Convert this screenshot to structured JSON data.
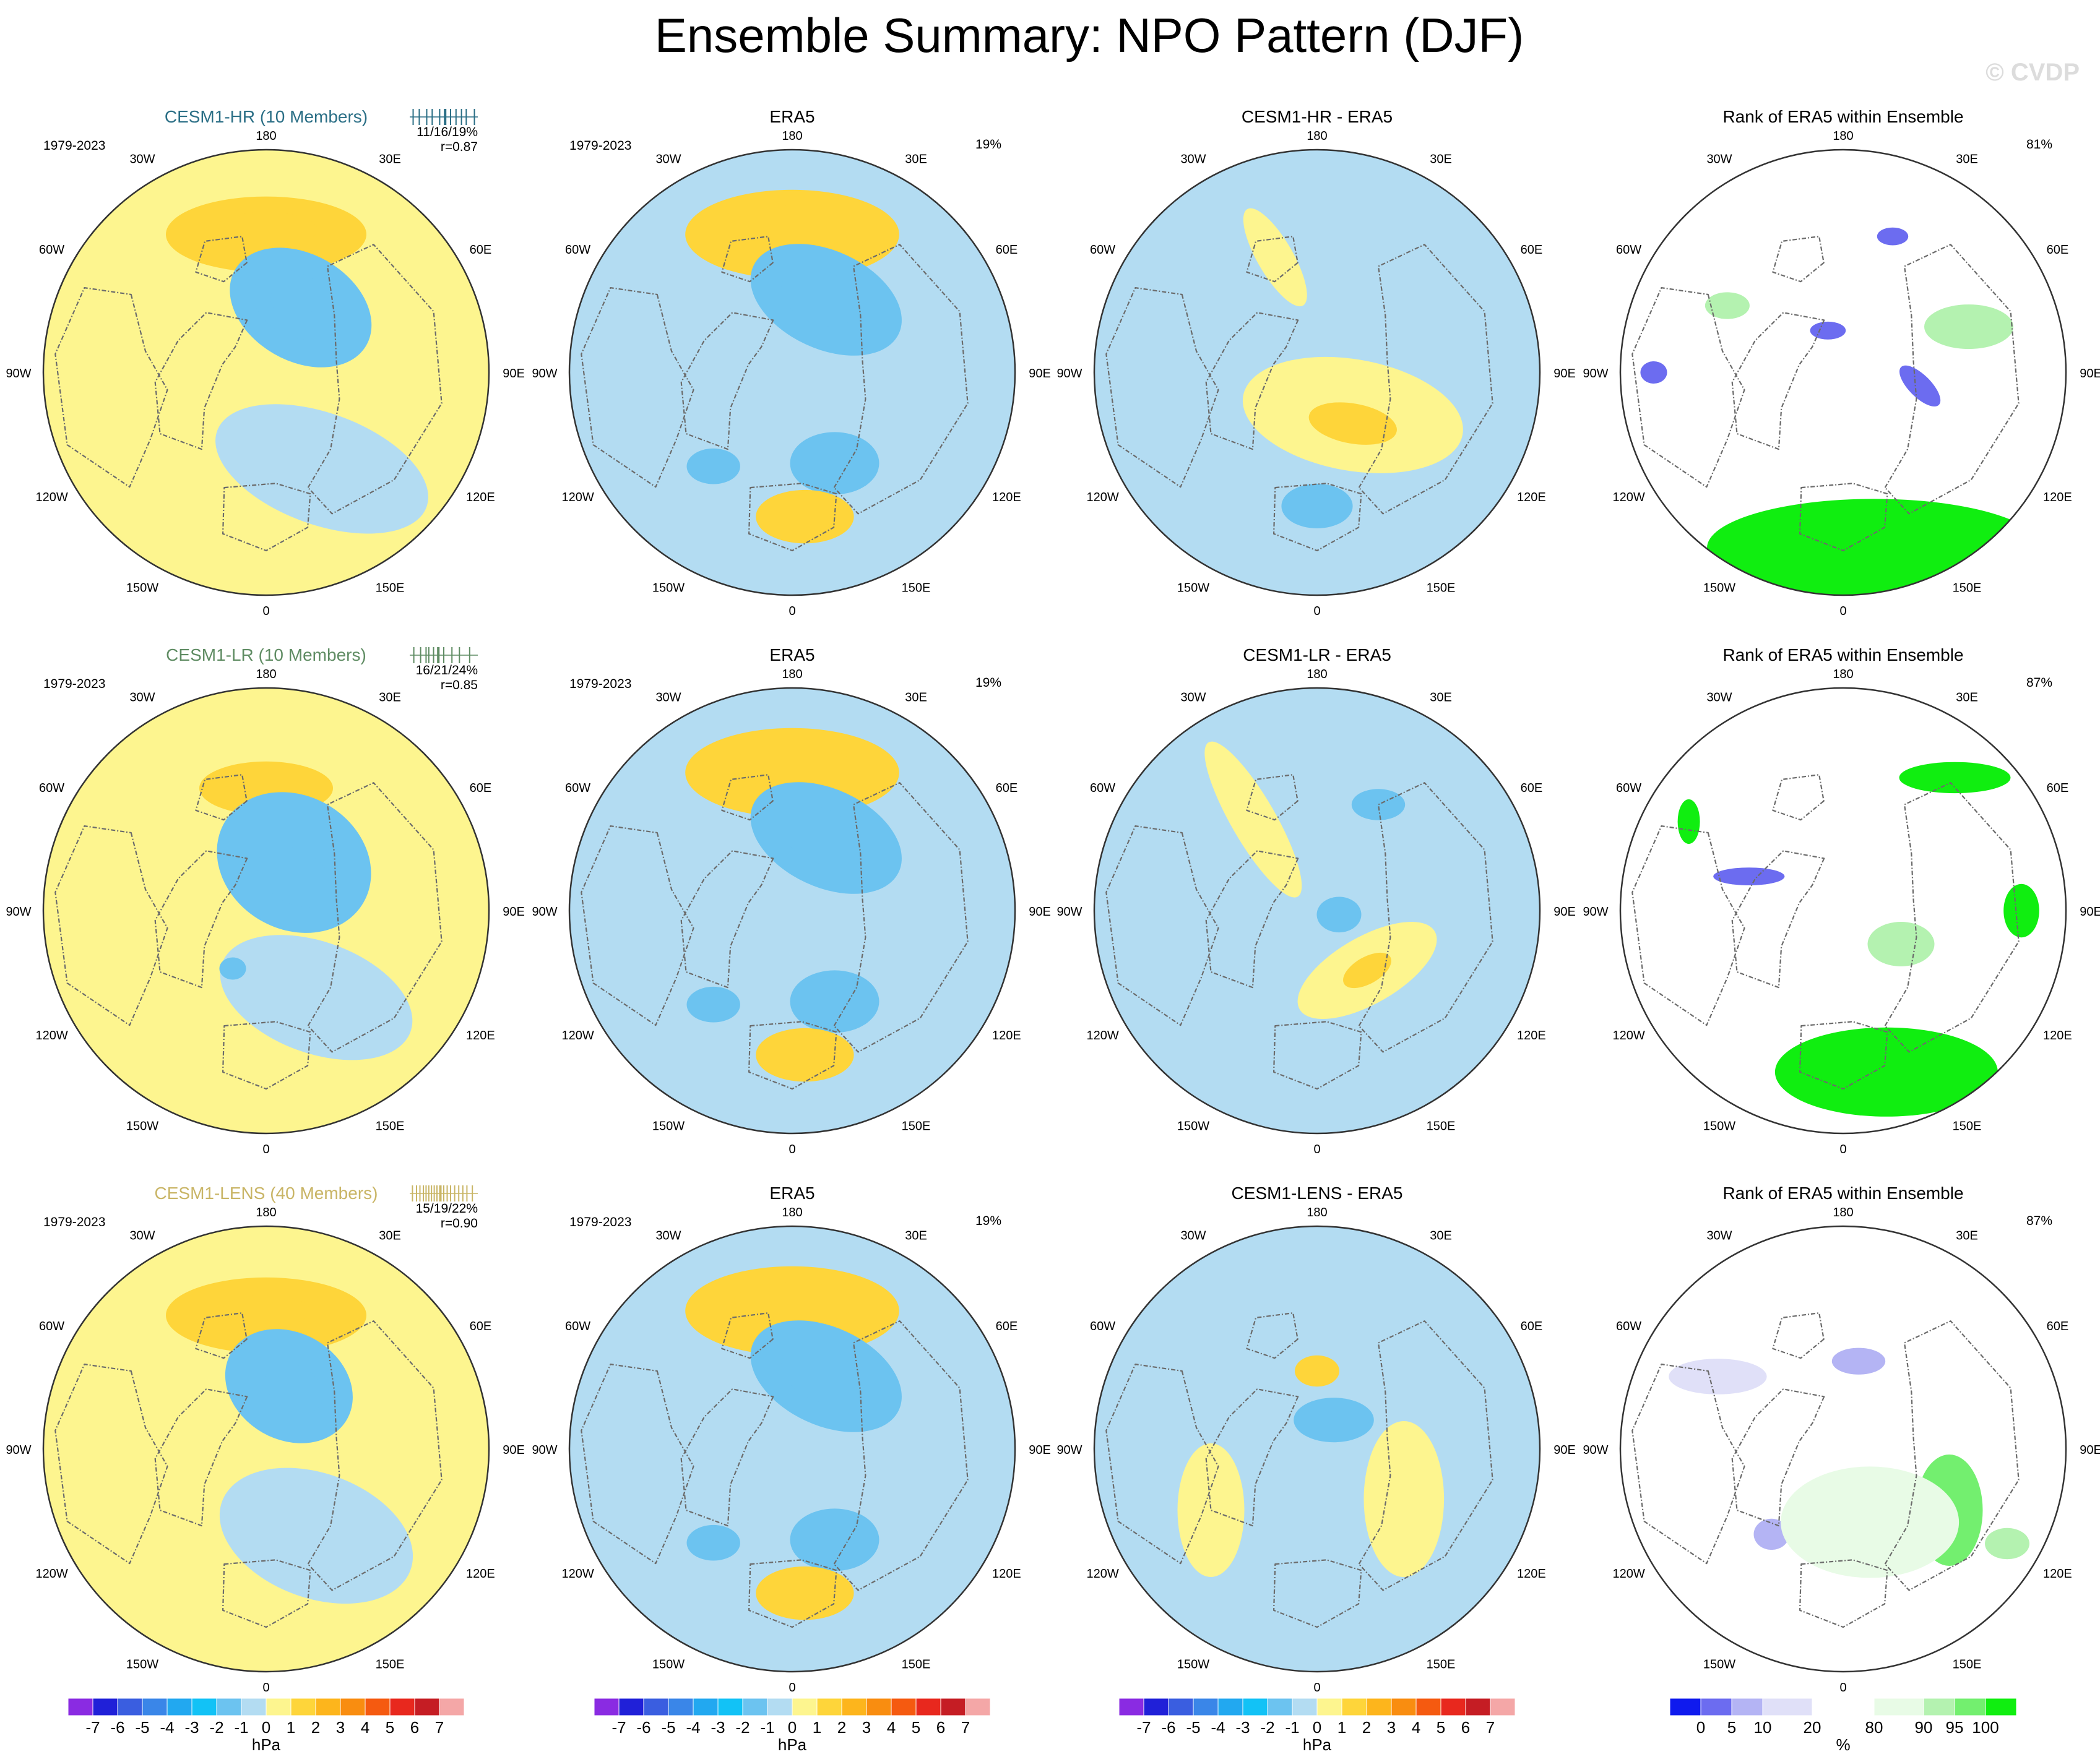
{
  "page": {
    "title": "Ensemble Summary: NPO Pattern (DJF)",
    "watermark": "© CVDP"
  },
  "colors": {
    "hr_title": "#2b6f86",
    "lr_title": "#5f8c63",
    "lens_title": "#c9b566",
    "land_outline": "#6b6b6b"
  },
  "chart_data": {
    "type": "heatmap",
    "projection": "north-polar-stereographic",
    "lon_labels": [
      "180",
      "150E",
      "120E",
      "90E",
      "60E",
      "30E",
      "0",
      "30W",
      "60W",
      "90W",
      "120W",
      "150W"
    ],
    "scales": {
      "hpa": {
        "colors": [
          "#8a2be2",
          "#2020d8",
          "#3a5ee0",
          "#3a86e8",
          "#22a8f0",
          "#12c2f6",
          "#6cc3f0",
          "#b3dcf2",
          "#fdf58f",
          "#fed53a",
          "#fdb51c",
          "#f98d10",
          "#f55a10",
          "#e8281e",
          "#c51d24",
          "#f4a7a7"
        ],
        "labels": [
          "-7",
          "-6",
          "-5",
          "-4",
          "-3",
          "-2",
          "-1",
          "0",
          "1",
          "2",
          "3",
          "4",
          "5",
          "6",
          "7"
        ],
        "unit": "hPa"
      },
      "rank": {
        "colors": [
          "#0f1aee",
          "#6c6cf0",
          "#b4b4f4",
          "#e0e0f8",
          "#ffffff",
          "#e8fbe6",
          "#b4f2b0",
          "#73ef6f",
          "#10ee10"
        ],
        "labels": [
          "0",
          "5",
          "10",
          "20",
          "80",
          "90",
          "95",
          "100"
        ],
        "unit": "%"
      }
    },
    "rows": [
      {
        "model": "CESM1-HR (10 Members)",
        "color_key": "hr_title",
        "years": "1979-2023",
        "spread_text": "11/16/19%",
        "pattern_corr": "r=0.87",
        "spread_ticks": [
          0.05,
          0.14,
          0.25,
          0.33,
          0.44,
          0.52,
          0.6,
          0.68,
          0.76,
          0.83,
          0.95
        ],
        "era_pct": "19%",
        "diff_title": "CESM1-HR - ERA5",
        "rank_title": "Rank of ERA5 within Ensemble",
        "rank_pct": "81%",
        "model_field": [
          {
            "lon": 180,
            "r": 0.62,
            "v": 1.5,
            "a": 0.45,
            "b": 0.17,
            "rot": 0
          },
          {
            "lon": 180,
            "r": 0.64,
            "v": 1.5,
            "a": 0.23,
            "b": 0.08,
            "rot": 0
          },
          {
            "lon": 152,
            "r": 0.33,
            "v": -1.8,
            "a": 0.34,
            "b": 0.24,
            "rot": 30
          },
          {
            "lon": 157,
            "r": 0.33,
            "v": -1.6,
            "a": 0.2,
            "b": 0.14,
            "rot": 30
          },
          {
            "lon": 160,
            "r": 0.33,
            "v": -1.6,
            "a": 0.1,
            "b": 0.07,
            "rot": 30
          },
          {
            "lon": 50,
            "r": 0.3,
            "v": 0.8,
            "a": 0.24,
            "b": 0.14,
            "rot": -30
          },
          {
            "lon": 30,
            "r": 0.5,
            "v": -0.6,
            "a": 0.5,
            "b": 0.25,
            "rot": 20
          }
        ],
        "era_field": [
          {
            "lon": 180,
            "r": 0.62,
            "v": 1.5,
            "a": 0.48,
            "b": 0.2,
            "rot": 0
          },
          {
            "lon": 180,
            "r": 0.65,
            "v": 1.5,
            "a": 0.27,
            "b": 0.1,
            "rot": 0
          },
          {
            "lon": 155,
            "r": 0.36,
            "v": -1.8,
            "a": 0.36,
            "b": 0.22,
            "rot": 25
          },
          {
            "lon": 160,
            "r": 0.36,
            "v": -1.6,
            "a": 0.18,
            "b": 0.12,
            "rot": 25
          },
          {
            "lon": 25,
            "r": 0.45,
            "v": -1.6,
            "a": 0.2,
            "b": 0.14,
            "rot": 0
          },
          {
            "lon": 320,
            "r": 0.55,
            "v": -1.6,
            "a": 0.12,
            "b": 0.08,
            "rot": 0
          },
          {
            "lon": 5,
            "r": 0.65,
            "v": 1.5,
            "a": 0.22,
            "b": 0.12,
            "rot": 0
          }
        ],
        "diff_field": [
          {
            "lon": 40,
            "r": 0.25,
            "v": 0.8,
            "a": 0.5,
            "b": 0.25,
            "rot": 10
          },
          {
            "lon": 35,
            "r": 0.28,
            "v": 1.5,
            "a": 0.2,
            "b": 0.09,
            "rot": 10
          },
          {
            "lon": 200,
            "r": 0.55,
            "v": 0.8,
            "a": 0.25,
            "b": 0.08,
            "rot": 60
          },
          {
            "lon": 0,
            "r": 0.6,
            "v": -1.5,
            "a": 0.16,
            "b": 0.1,
            "rot": 0
          }
        ],
        "rank_field": [
          {
            "lon": 10,
            "r": 0.8,
            "v": 4,
            "a": 0.75,
            "b": 0.22,
            "rot": 0
          },
          {
            "lon": 160,
            "r": 0.65,
            "v": -3,
            "a": 0.07,
            "b": 0.04,
            "rot": 0
          },
          {
            "lon": 80,
            "r": 0.35,
            "v": -3,
            "a": 0.12,
            "b": 0.05,
            "rot": 45
          },
          {
            "lon": 200,
            "r": 0.2,
            "v": -3,
            "a": 0.08,
            "b": 0.04,
            "rot": 0
          },
          {
            "lon": 270,
            "r": 0.85,
            "v": -3,
            "a": 0.06,
            "b": 0.05,
            "rot": 0
          },
          {
            "lon": 240,
            "r": 0.6,
            "v": 2,
            "a": 0.1,
            "b": 0.06,
            "rot": 0
          },
          {
            "lon": 110,
            "r": 0.6,
            "v": 2,
            "a": 0.2,
            "b": 0.1,
            "rot": 0
          }
        ]
      },
      {
        "model": "CESM1-LR (10 Members)",
        "color_key": "lr_title",
        "years": "1979-2023",
        "spread_text": "16/21/24%",
        "pattern_corr": "r=0.85",
        "spread_ticks": [
          0.06,
          0.16,
          0.24,
          0.28,
          0.35,
          0.42,
          0.5,
          0.62,
          0.73,
          0.88
        ],
        "era_pct": "19%",
        "diff_title": "CESM1-LR - ERA5",
        "rank_title": "Rank of ERA5 within Ensemble",
        "rank_pct": "87%",
        "model_field": [
          {
            "lon": 180,
            "r": 0.55,
            "v": 1.5,
            "a": 0.3,
            "b": 0.12,
            "rot": 0
          },
          {
            "lon": 150,
            "r": 0.25,
            "v": -1.8,
            "a": 0.36,
            "b": 0.3,
            "rot": 30
          },
          {
            "lon": 140,
            "r": 0.2,
            "v": -1.6,
            "a": 0.18,
            "b": 0.12,
            "rot": 30
          },
          {
            "lon": 30,
            "r": 0.45,
            "v": -0.6,
            "a": 0.45,
            "b": 0.25,
            "rot": 20
          },
          {
            "lon": 330,
            "r": 0.3,
            "v": -1.6,
            "a": 0.06,
            "b": 0.05,
            "rot": 0
          }
        ],
        "era_field": [
          {
            "lon": 180,
            "r": 0.62,
            "v": 1.5,
            "a": 0.48,
            "b": 0.2,
            "rot": 0
          },
          {
            "lon": 180,
            "r": 0.65,
            "v": 1.5,
            "a": 0.27,
            "b": 0.1,
            "rot": 0
          },
          {
            "lon": 155,
            "r": 0.36,
            "v": -1.8,
            "a": 0.36,
            "b": 0.22,
            "rot": 25
          },
          {
            "lon": 160,
            "r": 0.36,
            "v": -1.6,
            "a": 0.18,
            "b": 0.12,
            "rot": 25
          },
          {
            "lon": 25,
            "r": 0.45,
            "v": -1.6,
            "a": 0.2,
            "b": 0.14,
            "rot": 0
          },
          {
            "lon": 320,
            "r": 0.55,
            "v": -1.6,
            "a": 0.12,
            "b": 0.08,
            "rot": 0
          },
          {
            "lon": 5,
            "r": 0.65,
            "v": 1.5,
            "a": 0.22,
            "b": 0.12,
            "rot": 0
          }
        ],
        "diff_field": [
          {
            "lon": 40,
            "r": 0.35,
            "v": 0.8,
            "a": 0.35,
            "b": 0.15,
            "rot": -30
          },
          {
            "lon": 40,
            "r": 0.35,
            "v": 1.5,
            "a": 0.12,
            "b": 0.06,
            "rot": -30
          },
          {
            "lon": 215,
            "r": 0.5,
            "v": 0.8,
            "a": 0.4,
            "b": 0.1,
            "rot": 60
          },
          {
            "lon": 150,
            "r": 0.55,
            "v": -1.5,
            "a": 0.12,
            "b": 0.07,
            "rot": 0
          },
          {
            "lon": 80,
            "r": 0.1,
            "v": -1.5,
            "a": 0.1,
            "b": 0.08,
            "rot": 0
          }
        ],
        "rank_field": [
          {
            "lon": 15,
            "r": 0.75,
            "v": 4,
            "a": 0.5,
            "b": 0.2,
            "rot": 0
          },
          {
            "lon": 140,
            "r": 0.78,
            "v": 4,
            "a": 0.25,
            "b": 0.07,
            "rot": 0
          },
          {
            "lon": 250,
            "r": 0.45,
            "v": -3,
            "a": 0.16,
            "b": 0.04,
            "rot": 0
          },
          {
            "lon": 90,
            "r": 0.8,
            "v": 4,
            "a": 0.08,
            "b": 0.12,
            "rot": 0
          },
          {
            "lon": 240,
            "r": 0.8,
            "v": 4,
            "a": 0.05,
            "b": 0.1,
            "rot": 0
          },
          {
            "lon": 60,
            "r": 0.3,
            "v": 2,
            "a": 0.15,
            "b": 0.1,
            "rot": 0
          }
        ]
      },
      {
        "model": "CESM1-LENS (40 Members)",
        "color_key": "lens_title",
        "years": "1979-2023",
        "spread_text": "15/19/22%",
        "pattern_corr": "r=0.90",
        "spread_ticks": [
          0.04,
          0.1,
          0.15,
          0.2,
          0.24,
          0.28,
          0.32,
          0.36,
          0.4,
          0.45,
          0.5,
          0.55,
          0.6,
          0.66,
          0.72,
          0.78,
          0.84,
          0.92
        ],
        "era_pct": "19%",
        "diff_title": "CESM1-LENS - ERA5",
        "rank_title": "Rank of ERA5 within Ensemble",
        "rank_pct": "87%",
        "model_field": [
          {
            "lon": 180,
            "r": 0.6,
            "v": 1.5,
            "a": 0.45,
            "b": 0.17,
            "rot": 0
          },
          {
            "lon": 180,
            "r": 0.62,
            "v": 1.5,
            "a": 0.2,
            "b": 0.07,
            "rot": 0
          },
          {
            "lon": 160,
            "r": 0.3,
            "v": -1.8,
            "a": 0.3,
            "b": 0.24,
            "rot": 30
          },
          {
            "lon": 155,
            "r": 0.3,
            "v": -1.6,
            "a": 0.14,
            "b": 0.1,
            "rot": 30
          },
          {
            "lon": 30,
            "r": 0.45,
            "v": -0.6,
            "a": 0.45,
            "b": 0.28,
            "rot": 20
          }
        ],
        "era_field": [
          {
            "lon": 180,
            "r": 0.62,
            "v": 1.5,
            "a": 0.48,
            "b": 0.2,
            "rot": 0
          },
          {
            "lon": 180,
            "r": 0.65,
            "v": 1.5,
            "a": 0.27,
            "b": 0.1,
            "rot": 0
          },
          {
            "lon": 155,
            "r": 0.36,
            "v": -1.8,
            "a": 0.36,
            "b": 0.22,
            "rot": 25
          },
          {
            "lon": 160,
            "r": 0.36,
            "v": -1.6,
            "a": 0.18,
            "b": 0.12,
            "rot": 25
          },
          {
            "lon": 25,
            "r": 0.45,
            "v": -1.6,
            "a": 0.2,
            "b": 0.14,
            "rot": 0
          },
          {
            "lon": 320,
            "r": 0.55,
            "v": -1.6,
            "a": 0.12,
            "b": 0.08,
            "rot": 0
          },
          {
            "lon": 5,
            "r": 0.65,
            "v": 1.5,
            "a": 0.22,
            "b": 0.12,
            "rot": 0
          }
        ],
        "diff_field": [
          {
            "lon": 0,
            "r": 0.0,
            "v": -0.5,
            "a": 0.45,
            "b": 0.35,
            "rot": 30
          },
          {
            "lon": 60,
            "r": 0.45,
            "v": 0.8,
            "a": 0.18,
            "b": 0.35,
            "rot": 0
          },
          {
            "lon": 300,
            "r": 0.55,
            "v": 0.8,
            "a": 0.15,
            "b": 0.3,
            "rot": 0
          },
          {
            "lon": 180,
            "r": 0.35,
            "v": 1.5,
            "a": 0.1,
            "b": 0.07,
            "rot": 0
          },
          {
            "lon": 150,
            "r": 0.15,
            "v": -1.5,
            "a": 0.18,
            "b": 0.1,
            "rot": 0
          }
        ],
        "rank_field": [
          {
            "lon": 170,
            "r": 0.4,
            "v": -2,
            "a": 0.12,
            "b": 0.06,
            "rot": 0
          },
          {
            "lon": 240,
            "r": 0.65,
            "v": -1,
            "a": 0.22,
            "b": 0.08,
            "rot": 0
          },
          {
            "lon": 320,
            "r": 0.5,
            "v": -2,
            "a": 0.08,
            "b": 0.07,
            "rot": 0
          },
          {
            "lon": 60,
            "r": 0.55,
            "v": 3,
            "a": 0.15,
            "b": 0.25,
            "rot": 0
          },
          {
            "lon": 20,
            "r": 0.35,
            "v": 1,
            "a": 0.4,
            "b": 0.25,
            "rot": 0
          },
          {
            "lon": 60,
            "r": 0.85,
            "v": 2,
            "a": 0.1,
            "b": 0.07,
            "rot": 0
          }
        ]
      }
    ],
    "era_title": "ERA5"
  }
}
